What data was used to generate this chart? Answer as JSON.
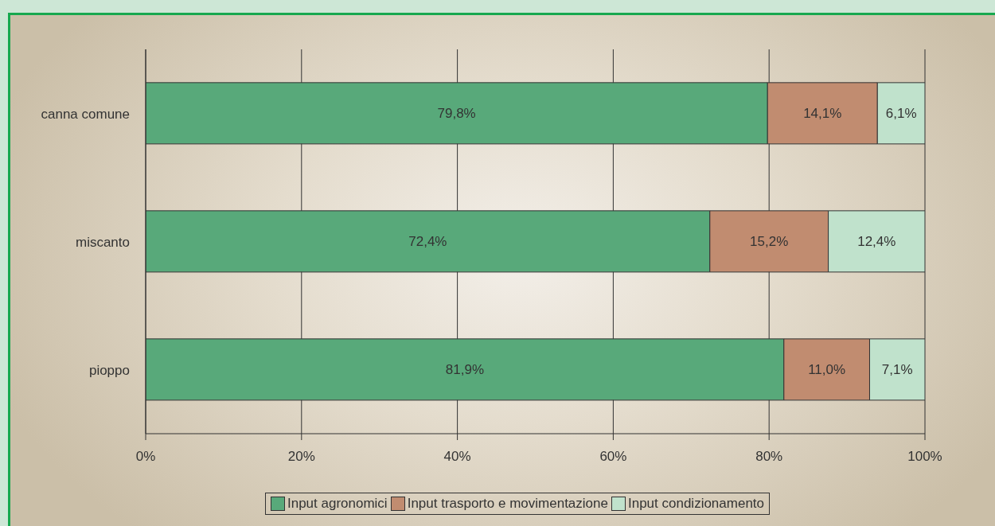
{
  "chart_data": {
    "type": "bar",
    "orientation": "horizontal",
    "stacked": true,
    "categories": [
      "canna comune",
      "miscanto",
      "pioppo"
    ],
    "series": [
      {
        "name": "Input agronomici",
        "color": "#58a97a",
        "values": [
          79.8,
          72.4,
          81.9
        ],
        "value_labels": [
          "79,8%",
          "72,4%",
          "81,9%"
        ]
      },
      {
        "name": "Input trasporto e movimentazione",
        "color": "#c18c70",
        "values": [
          14.1,
          15.2,
          11.0
        ],
        "value_labels": [
          "14,1%",
          "15,2%",
          "11,0%"
        ]
      },
      {
        "name": "Input condizionamento",
        "color": "#c0e2cc",
        "values": [
          6.1,
          12.4,
          7.1
        ],
        "value_labels": [
          "6,1%",
          "12,4%",
          "7,1%"
        ]
      }
    ],
    "xlim": [
      0,
      100
    ],
    "xticks": [
      {
        "value": 0,
        "label": "0%"
      },
      {
        "value": 20,
        "label": "20%"
      },
      {
        "value": 40,
        "label": "40%"
      },
      {
        "value": 60,
        "label": "60%"
      },
      {
        "value": 80,
        "label": "80%"
      },
      {
        "value": 100,
        "label": "100%"
      }
    ],
    "grid": "x",
    "legend": "bottom"
  }
}
